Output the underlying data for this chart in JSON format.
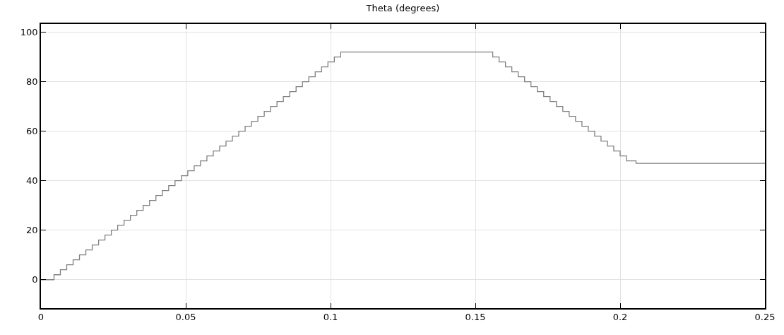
{
  "chart_data": {
    "type": "step",
    "title": "Theta (degrees)",
    "x": [
      0,
      0.0045,
      0.0067,
      0.0089,
      0.0111,
      0.0133,
      0.0155,
      0.0177,
      0.0199,
      0.0221,
      0.0243,
      0.0265,
      0.0287,
      0.0309,
      0.0331,
      0.0353,
      0.0375,
      0.0397,
      0.0419,
      0.0441,
      0.0463,
      0.0485,
      0.0507,
      0.0529,
      0.0551,
      0.0573,
      0.0595,
      0.0617,
      0.0639,
      0.0661,
      0.0683,
      0.0705,
      0.0727,
      0.0749,
      0.0771,
      0.0793,
      0.0815,
      0.0837,
      0.0859,
      0.0881,
      0.0903,
      0.0925,
      0.0947,
      0.0969,
      0.0991,
      0.1013,
      0.1035,
      0.156,
      0.1582,
      0.1604,
      0.1626,
      0.1648,
      0.167,
      0.1692,
      0.1714,
      0.1736,
      0.1758,
      0.178,
      0.1802,
      0.1824,
      0.1846,
      0.1868,
      0.189,
      0.1912,
      0.1934,
      0.1956,
      0.1978,
      0.2,
      0.2022,
      0.2055,
      0.25
    ],
    "series": [
      {
        "color": "#808080",
        "values": [
          0,
          2,
          4,
          6,
          8,
          10,
          12,
          14,
          16,
          18,
          20,
          22,
          24,
          26,
          28,
          30,
          32,
          34,
          36,
          38,
          40,
          42,
          44,
          46,
          48,
          50,
          52,
          54,
          56,
          58,
          60,
          62,
          64,
          66,
          68,
          70,
          72,
          74,
          76,
          78,
          80,
          82,
          84,
          86,
          88,
          90,
          92,
          90,
          88,
          86,
          84,
          82,
          80,
          78,
          76,
          74,
          72,
          70,
          68,
          66,
          64,
          62,
          60,
          58,
          56,
          54,
          52,
          50,
          48,
          47,
          47
        ]
      }
    ],
    "xlim": [
      0,
      0.25
    ],
    "xticks": [
      0,
      0.05,
      0.1,
      0.15,
      0.2,
      0.25
    ],
    "ylim": [
      -11.5,
      103.3
    ],
    "yticks": [
      0,
      20,
      40,
      60,
      80,
      100
    ],
    "grid": true,
    "marker": "none",
    "line_style": "solid"
  }
}
